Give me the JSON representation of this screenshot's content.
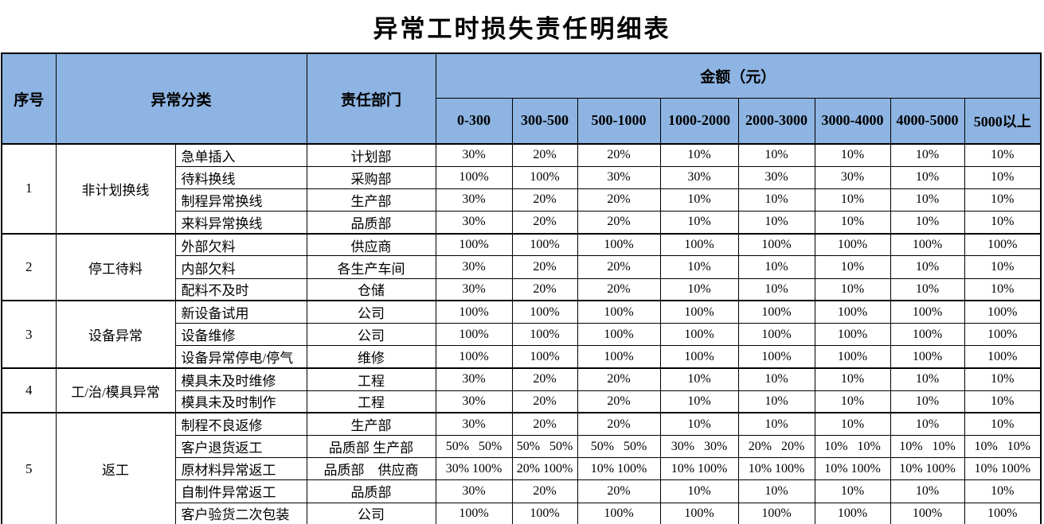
{
  "title": "异常工时损失责任明细表",
  "colors": {
    "header_bg": "#8DB4E2",
    "border": "#000000",
    "page_bg": "#FFFFFF",
    "text": "#000000"
  },
  "table": {
    "header": {
      "no": "序号",
      "category": "异常分类",
      "department": "责任部门",
      "amount_group": "金额（元）",
      "ranges": [
        "0-300",
        "300-500",
        "500-1000",
        "1000-2000",
        "2000-3000",
        "3000-4000",
        "4000-5000",
        "5000以上"
      ]
    },
    "sections": [
      {
        "no": "1",
        "category": "非计划换线",
        "rows": [
          {
            "sub": "急单插入",
            "dept": "计划部",
            "values": [
              "30%",
              "20%",
              "20%",
              "10%",
              "10%",
              "10%",
              "10%",
              "10%"
            ]
          },
          {
            "sub": "待料换线",
            "dept": "采购部",
            "values": [
              "100%",
              "100%",
              "30%",
              "30%",
              "30%",
              "30%",
              "10%",
              "10%"
            ]
          },
          {
            "sub": "制程异常换线",
            "dept": "生产部",
            "values": [
              "30%",
              "20%",
              "20%",
              "10%",
              "10%",
              "10%",
              "10%",
              "10%"
            ]
          },
          {
            "sub": "来料异常换线",
            "dept": "品质部",
            "values": [
              "30%",
              "20%",
              "20%",
              "10%",
              "10%",
              "10%",
              "10%",
              "10%"
            ]
          }
        ]
      },
      {
        "no": "2",
        "category": "停工待料",
        "rows": [
          {
            "sub": "外部欠料",
            "dept": "供应商",
            "values": [
              "100%",
              "100%",
              "100%",
              "100%",
              "100%",
              "100%",
              "100%",
              "100%"
            ]
          },
          {
            "sub": "内部欠料",
            "dept": "各生产车间",
            "values": [
              "30%",
              "20%",
              "20%",
              "10%",
              "10%",
              "10%",
              "10%",
              "10%"
            ]
          },
          {
            "sub": "配料不及时",
            "dept": "仓储",
            "values": [
              "30%",
              "20%",
              "20%",
              "10%",
              "10%",
              "10%",
              "10%",
              "10%"
            ]
          }
        ]
      },
      {
        "no": "3",
        "category": "设备异常",
        "rows": [
          {
            "sub": "新设备试用",
            "dept": "公司",
            "values": [
              "100%",
              "100%",
              "100%",
              "100%",
              "100%",
              "100%",
              "100%",
              "100%"
            ]
          },
          {
            "sub": "设备维修",
            "dept": "公司",
            "values": [
              "100%",
              "100%",
              "100%",
              "100%",
              "100%",
              "100%",
              "100%",
              "100%"
            ]
          },
          {
            "sub": "设备异常停电/停气",
            "dept": "维修",
            "values": [
              "100%",
              "100%",
              "100%",
              "100%",
              "100%",
              "100%",
              "100%",
              "100%"
            ]
          }
        ]
      },
      {
        "no": "4",
        "category": "工/治/模具异常",
        "rows": [
          {
            "sub": "模具未及时维修",
            "dept": "工程",
            "values": [
              "30%",
              "20%",
              "20%",
              "10%",
              "10%",
              "10%",
              "10%",
              "10%"
            ]
          },
          {
            "sub": "模具未及时制作",
            "dept": "工程",
            "values": [
              "30%",
              "20%",
              "20%",
              "10%",
              "10%",
              "10%",
              "10%",
              "10%"
            ]
          }
        ]
      },
      {
        "no": "5",
        "category": "返工",
        "rows": [
          {
            "sub": "制程不良返修",
            "dept": "生产部",
            "values": [
              "30%",
              "20%",
              "20%",
              "10%",
              "10%",
              "10%",
              "10%",
              "10%"
            ]
          },
          {
            "sub": "客户退货返工",
            "dept": "品质部 生产部",
            "values": [
              "50%   50%",
              "50%   50%",
              "50%   50%",
              "30%   30%",
              "20%   20%",
              "10%   10%",
              "10%   10%",
              "10%   10%"
            ]
          },
          {
            "sub": "原材料异常返工",
            "dept": "品质部　供应商",
            "values": [
              "30% 100%",
              "20% 100%",
              "10% 100%",
              "10% 100%",
              "10% 100%",
              "10% 100%",
              "10% 100%",
              "10% 100%"
            ]
          },
          {
            "sub": "自制件异常返工",
            "dept": "品质部",
            "values": [
              "30%",
              "20%",
              "20%",
              "10%",
              "10%",
              "10%",
              "10%",
              "10%"
            ]
          },
          {
            "sub": "客户验货二次包装",
            "dept": "公司",
            "values": [
              "100%",
              "100%",
              "100%",
              "100%",
              "100%",
              "100%",
              "100%",
              "100%"
            ]
          }
        ]
      }
    ]
  }
}
